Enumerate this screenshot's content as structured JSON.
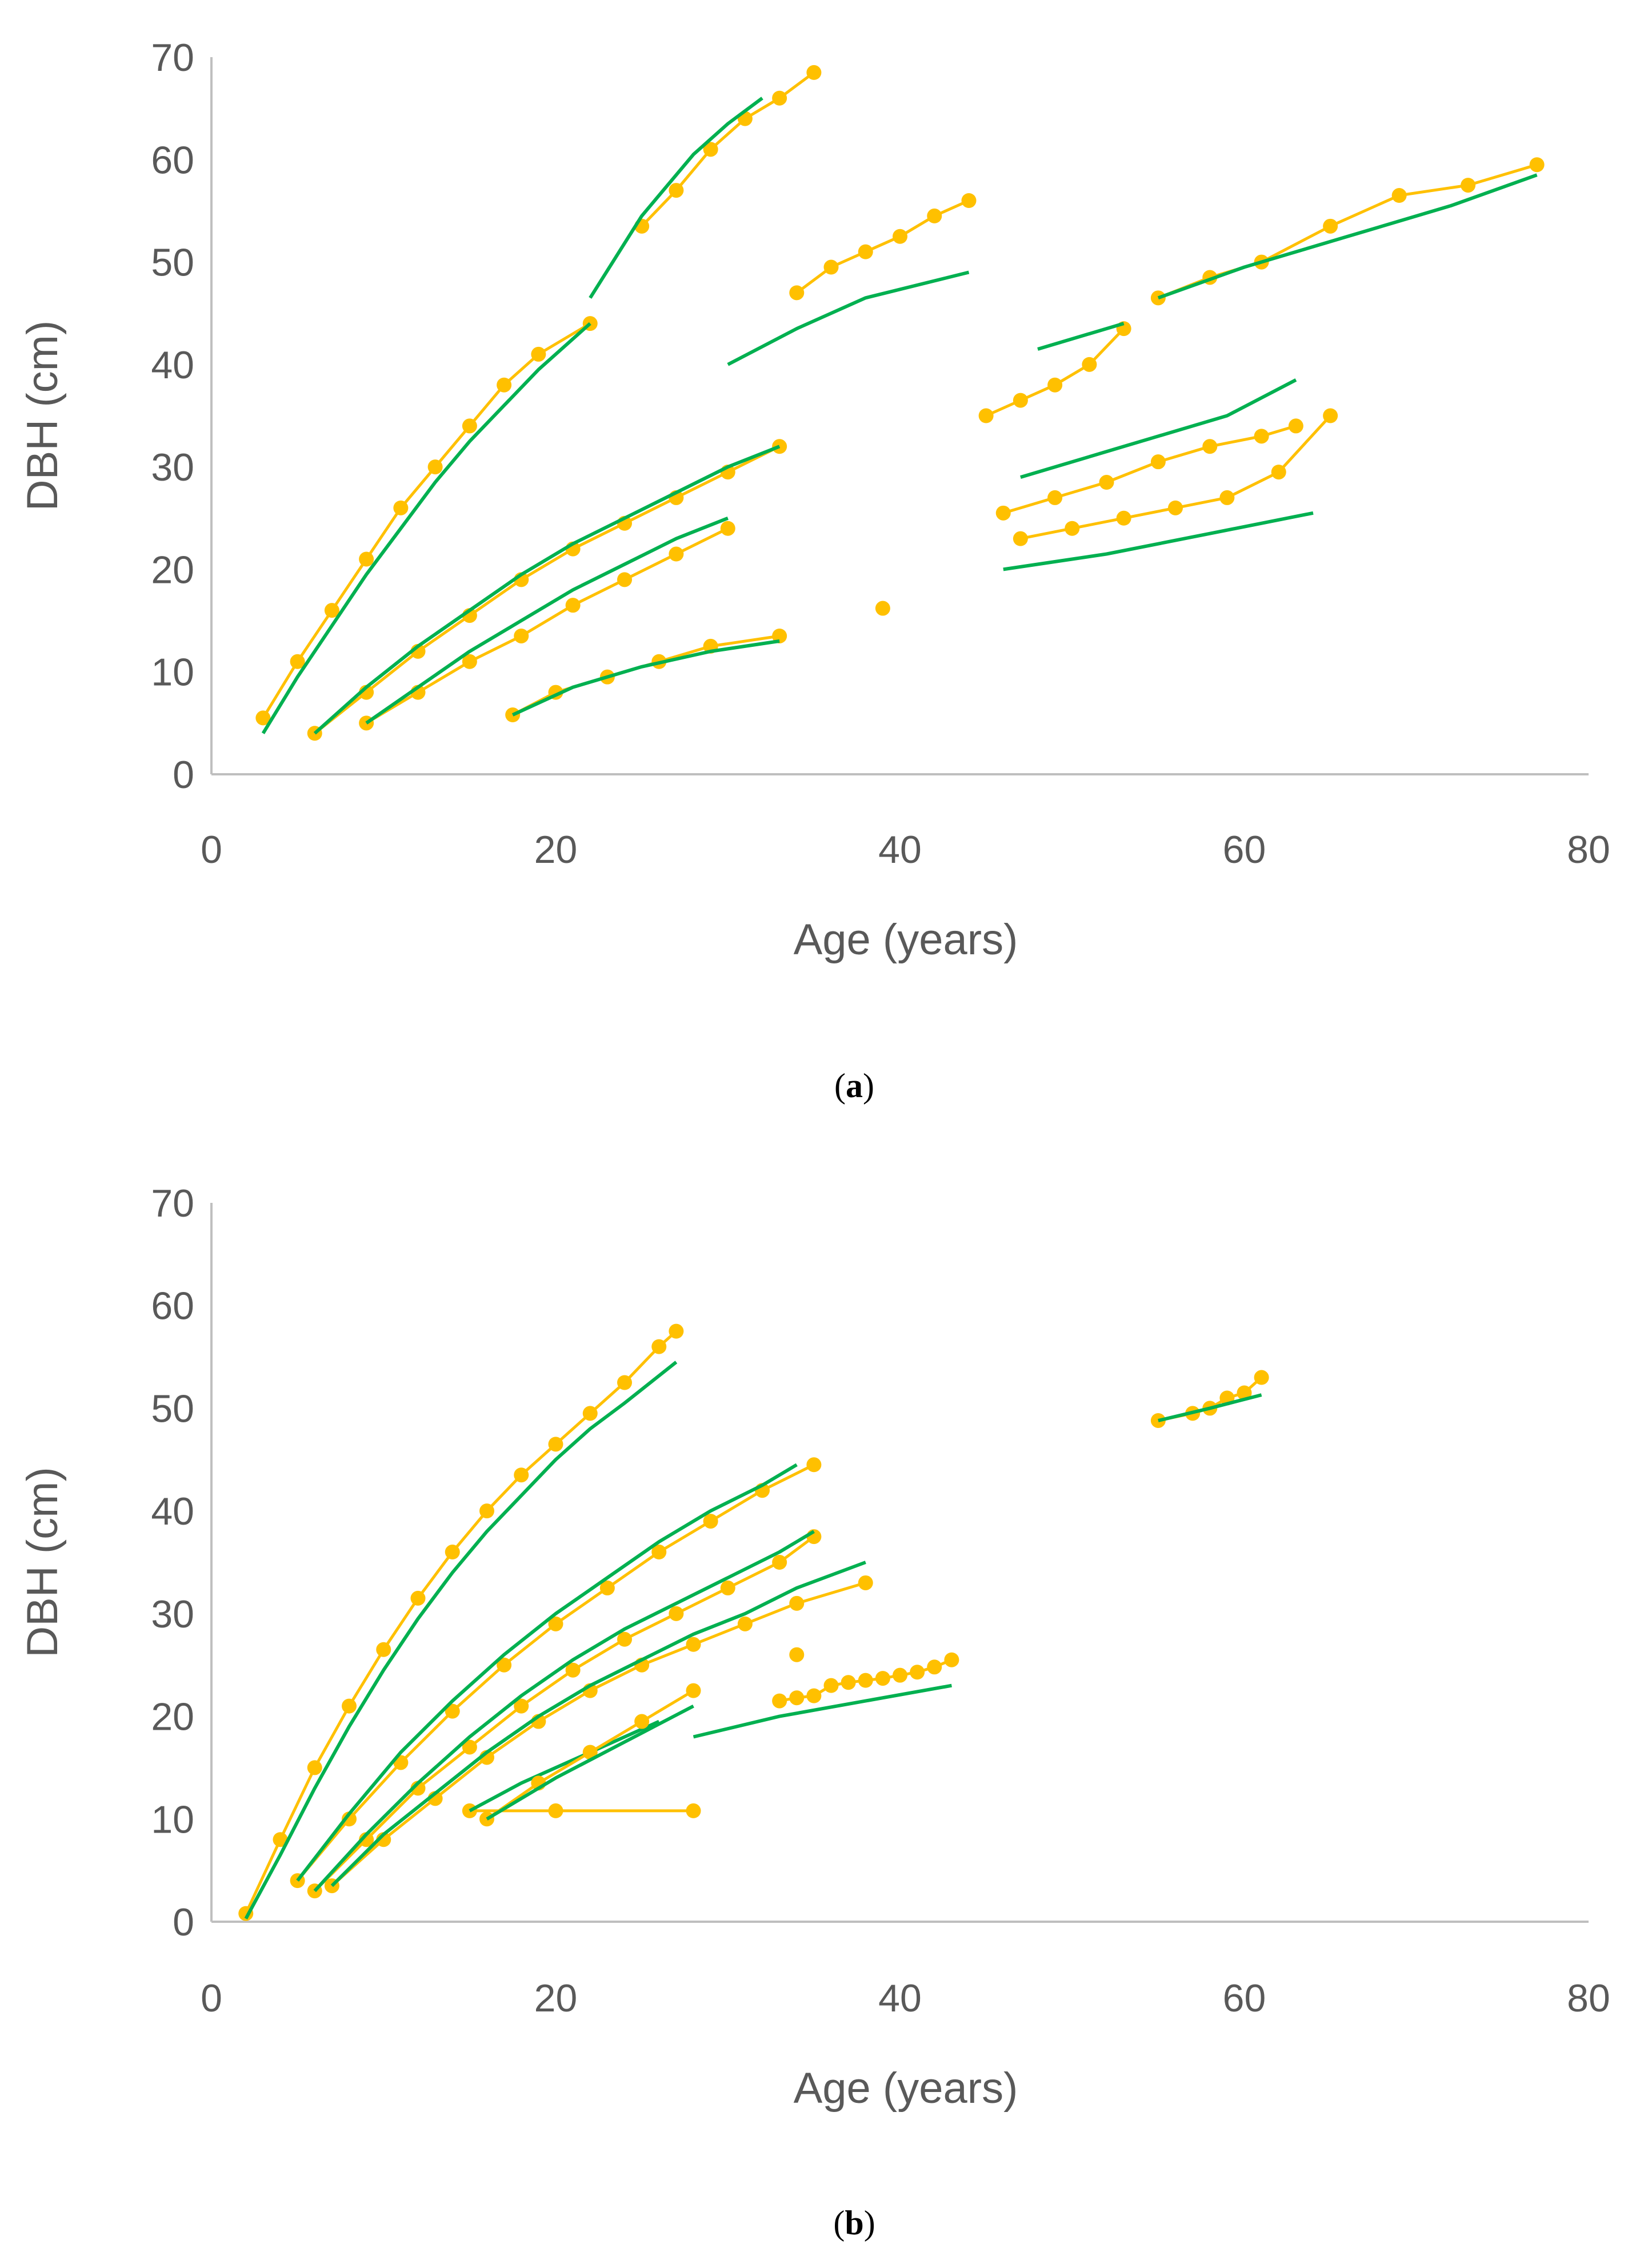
{
  "colors": {
    "observed": "#FFC000",
    "fitted": "#00B050",
    "axis": "#BFBFBF",
    "text": "#595959"
  },
  "chart_data": [
    {
      "type": "line",
      "panel": "(a)",
      "panel_letter": "a",
      "xlabel": "Age (years)",
      "ylabel": "DBH (cm)",
      "xlim": [
        0,
        80
      ],
      "ylim": [
        0,
        70
      ],
      "x_ticks": [
        0,
        20,
        40,
        60,
        80
      ],
      "y_ticks": [
        0,
        10,
        20,
        30,
        40,
        50,
        60,
        70
      ],
      "grid": false,
      "series": [
        {
          "name": "observed",
          "x": [
            3,
            5,
            7,
            9,
            11,
            13,
            15,
            17,
            19,
            22
          ],
          "values": [
            5.5,
            11,
            16,
            21,
            26,
            30,
            34,
            38,
            41,
            44
          ]
        },
        {
          "name": "fitted",
          "x": [
            3,
            5,
            7,
            9,
            11,
            13,
            15,
            17,
            19,
            22
          ],
          "values": [
            4,
            9.5,
            14.5,
            19.5,
            24,
            28.5,
            32.5,
            36,
            39.5,
            44
          ]
        },
        {
          "name": "observed",
          "x": [
            25,
            27,
            29,
            31,
            33,
            35
          ],
          "values": [
            53.5,
            57,
            61,
            64,
            66,
            68.5
          ]
        },
        {
          "name": "fitted",
          "x": [
            22,
            25,
            28,
            30,
            32
          ],
          "values": [
            46.5,
            54.5,
            60.5,
            63.5,
            66
          ]
        },
        {
          "name": "observed",
          "x": [
            34,
            36,
            38,
            40,
            42,
            44
          ],
          "values": [
            47,
            49.5,
            51,
            52.5,
            54.5,
            56
          ]
        },
        {
          "name": "fitted",
          "x": [
            30,
            34,
            38,
            44
          ],
          "values": [
            40,
            43.5,
            46.5,
            49
          ]
        },
        {
          "name": "observed",
          "x": [
            55,
            58,
            61,
            65,
            69,
            73,
            77
          ],
          "values": [
            46.5,
            48.5,
            50,
            53.5,
            56.5,
            57.5,
            59.5
          ]
        },
        {
          "name": "fitted",
          "x": [
            55,
            60,
            66,
            72,
            77
          ],
          "values": [
            46.5,
            49.5,
            52.5,
            55.5,
            58.5
          ]
        },
        {
          "name": "observed",
          "x": [
            45,
            47,
            49,
            51,
            53
          ],
          "values": [
            35,
            36.5,
            38,
            40,
            43.5
          ]
        },
        {
          "name": "fitted",
          "x": [
            48,
            50,
            53
          ],
          "values": [
            41.5,
            42.5,
            44
          ]
        },
        {
          "name": "observed",
          "x": [
            46,
            49,
            52,
            55,
            58,
            61,
            63
          ],
          "values": [
            25.5,
            27,
            28.5,
            30.5,
            32,
            33,
            34
          ]
        },
        {
          "name": "fitted",
          "x": [
            47,
            53,
            59,
            63
          ],
          "values": [
            29,
            32,
            35,
            38.5
          ]
        },
        {
          "name": "observed",
          "x": [
            47,
            50,
            53,
            56,
            59,
            62,
            65
          ],
          "values": [
            23,
            24,
            25,
            26,
            27,
            29.5,
            35
          ]
        },
        {
          "name": "fitted",
          "x": [
            46,
            52,
            58,
            64
          ],
          "values": [
            20,
            21.5,
            23.5,
            25.5
          ]
        },
        {
          "name": "observed",
          "x": [
            9,
            12,
            15,
            18,
            21,
            24,
            27,
            30
          ],
          "values": [
            5,
            8,
            11,
            13.5,
            16.5,
            19,
            21.5,
            24
          ]
        },
        {
          "name": "fitted",
          "x": [
            9,
            12,
            15,
            18,
            21,
            24,
            27,
            30
          ],
          "values": [
            5,
            8.5,
            12,
            15,
            18,
            20.5,
            23,
            25
          ]
        },
        {
          "name": "observed",
          "x": [
            17.5,
            20,
            23,
            26,
            29,
            33
          ],
          "values": [
            5.8,
            8,
            9.5,
            11,
            12.5,
            13.5
          ]
        },
        {
          "name": "fitted",
          "x": [
            17.5,
            21,
            25,
            29,
            33
          ],
          "values": [
            5.8,
            8.5,
            10.5,
            12,
            13
          ]
        },
        {
          "name": "observed",
          "x": [
            6,
            9,
            12,
            15,
            18,
            21,
            24,
            27,
            30,
            33
          ],
          "values": [
            4,
            8,
            12,
            15.5,
            19,
            22,
            24.5,
            27,
            29.5,
            32
          ]
        },
        {
          "name": "fitted",
          "x": [
            6,
            9,
            12,
            15,
            18,
            21,
            24,
            27,
            30,
            33
          ],
          "values": [
            4,
            8.5,
            12.5,
            16,
            19.5,
            22.5,
            25,
            27.5,
            30,
            32
          ]
        }
      ],
      "isolated_points": [
        {
          "x": 39,
          "y": 16.2
        }
      ]
    },
    {
      "type": "line",
      "panel": "(b)",
      "panel_letter": "b",
      "xlabel": "Age (years)",
      "ylabel": "DBH (cm)",
      "xlim": [
        0,
        80
      ],
      "ylim": [
        0,
        70
      ],
      "x_ticks": [
        0,
        20,
        40,
        60,
        80
      ],
      "y_ticks": [
        0,
        10,
        20,
        30,
        40,
        50,
        60,
        70
      ],
      "grid": false,
      "series": [
        {
          "name": "observed",
          "x": [
            2,
            4,
            6,
            8,
            10,
            12,
            14,
            16,
            18,
            20,
            22,
            24,
            26,
            27
          ],
          "values": [
            0.8,
            8,
            15,
            21,
            26.5,
            31.5,
            36,
            40,
            43.5,
            46.5,
            49.5,
            52.5,
            56,
            57.5
          ]
        },
        {
          "name": "fitted",
          "x": [
            2,
            4,
            6,
            8,
            10,
            12,
            14,
            16,
            18,
            20,
            22,
            24,
            27
          ],
          "values": [
            0.3,
            6.5,
            13,
            19,
            24.5,
            29.5,
            34,
            38,
            41.5,
            45,
            48,
            50.5,
            54.5
          ]
        },
        {
          "name": "observed",
          "x": [
            33,
            34,
            35,
            36,
            37,
            38,
            39,
            40,
            41,
            42,
            43
          ],
          "values": [
            21.5,
            21.8,
            22,
            23,
            23.3,
            23.5,
            23.7,
            24,
            24.3,
            24.8,
            25.5
          ]
        },
        {
          "name": "fitted",
          "x": [
            28,
            33,
            38,
            43
          ],
          "values": [
            18,
            20,
            21.5,
            23
          ]
        },
        {
          "name": "observed",
          "x": [
            55,
            57,
            58,
            59,
            60,
            61
          ],
          "values": [
            48.8,
            49.5,
            50,
            51,
            51.5,
            53
          ]
        },
        {
          "name": "fitted",
          "x": [
            55,
            58,
            61
          ],
          "values": [
            48.8,
            50,
            51.3
          ]
        },
        {
          "name": "observed",
          "x": [
            15,
            20,
            28
          ],
          "values": [
            10.8,
            10.8,
            10.8
          ]
        },
        {
          "name": "fitted",
          "x": [
            15,
            18,
            22,
            26
          ],
          "values": [
            10.8,
            13.5,
            16.5,
            19.5
          ]
        },
        {
          "name": "observed",
          "x": [
            16,
            19,
            22,
            25,
            28
          ],
          "values": [
            10,
            13.5,
            16.5,
            19.5,
            22.5
          ]
        },
        {
          "name": "fitted",
          "x": [
            16,
            20,
            24,
            28
          ],
          "values": [
            10,
            14,
            17.5,
            21
          ]
        },
        {
          "name": "observed",
          "x": [
            6,
            9,
            12,
            15,
            18,
            21,
            24,
            27,
            30,
            33,
            35
          ],
          "values": [
            3,
            8,
            13,
            17,
            21,
            24.5,
            27.5,
            30,
            32.5,
            35,
            37.5
          ]
        },
        {
          "name": "fitted",
          "x": [
            6,
            9,
            12,
            15,
            18,
            21,
            24,
            27,
            30,
            33,
            35
          ],
          "values": [
            3,
            8.5,
            13.5,
            18,
            22,
            25.5,
            28.5,
            31,
            33.5,
            36,
            38
          ]
        },
        {
          "name": "observed",
          "x": [
            5,
            8,
            11,
            14,
            17,
            20,
            23,
            26,
            29,
            32,
            35
          ],
          "values": [
            4,
            10,
            15.5,
            20.5,
            25,
            29,
            32.5,
            36,
            39,
            42,
            44.5
          ]
        },
        {
          "name": "fitted",
          "x": [
            5,
            8,
            11,
            14,
            17,
            20,
            23,
            26,
            29,
            32,
            34
          ],
          "values": [
            4,
            10.5,
            16.5,
            21.5,
            26,
            30,
            33.5,
            37,
            40,
            42.5,
            44.5
          ]
        },
        {
          "name": "observed",
          "x": [
            7,
            10,
            13,
            16,
            19,
            22,
            25,
            28,
            31,
            34,
            38
          ],
          "values": [
            3.5,
            8,
            12,
            16,
            19.5,
            22.5,
            25,
            27,
            29,
            31,
            33
          ]
        },
        {
          "name": "fitted",
          "x": [
            7,
            10,
            13,
            16,
            19,
            22,
            25,
            28,
            31,
            34,
            38
          ],
          "values": [
            3.5,
            8.5,
            12.5,
            16.5,
            20,
            23,
            25.5,
            28,
            30,
            32.5,
            35
          ]
        }
      ],
      "isolated_points": [
        {
          "x": 34,
          "y": 26
        }
      ]
    }
  ]
}
